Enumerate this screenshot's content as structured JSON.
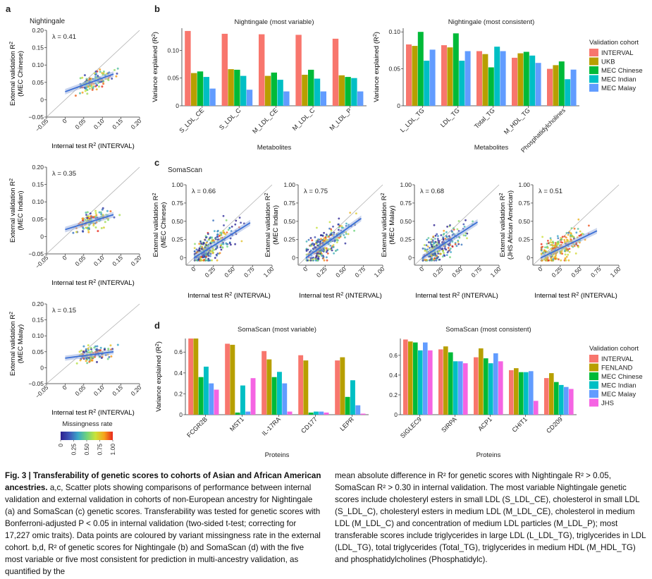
{
  "panel_letters": {
    "a": "a",
    "b": "b",
    "c": "c",
    "d": "d"
  },
  "colors": {
    "INTERVAL": "#f8766d",
    "UKB": "#b79f00",
    "FENLAND": "#b79f00",
    "MEC Chinese": "#00ba38",
    "MEC Indian": "#00bfc4",
    "MEC Malay": "#619cff",
    "JHS": "#f564e3",
    "fit_line": "#3b6fd6",
    "diagonal": "#b0b0b0"
  },
  "missingness": {
    "title": "Missingness rate",
    "ticks": [
      "0",
      "0.25",
      "0.50",
      "0.75",
      "1.00"
    ],
    "gradient": [
      "#2c1f8f",
      "#3d55b8",
      "#39a7c8",
      "#6fd37d",
      "#c9e33a",
      "#f6a51c",
      "#e8261c"
    ]
  },
  "chart_data": [
    {
      "id": "a1",
      "type": "scatter",
      "title": "Nightingale",
      "annotation": "λ = 0.41",
      "xlabel": "Internal test R2 (INTERVAL)",
      "ylabel": "External validation R2 (MEC Chinese)",
      "xlim": [
        -0.05,
        0.2
      ],
      "ylim": [
        -0.05,
        0.2
      ],
      "xticks": [
        "−0.05",
        "0",
        "0.05",
        "0.10",
        "0.15",
        "0.20"
      ],
      "yticks": [
        "−0.05",
        "0",
        "0.05",
        "0.10",
        "0.15",
        "0.20"
      ],
      "fit": {
        "x": [
          0.0,
          0.13
        ],
        "y": [
          0.023,
          0.074
        ]
      },
      "cloud": {
        "xmean": 0.07,
        "xsd": 0.03,
        "slope": 0.41,
        "icept": 0.023,
        "ysd": 0.012
      }
    },
    {
      "id": "a2",
      "type": "scatter",
      "annotation": "λ = 0.35",
      "xlabel": "Internal test R2 (INTERVAL)",
      "ylabel": "External validation R2 (MEC Indian)",
      "xlim": [
        -0.05,
        0.2
      ],
      "ylim": [
        -0.05,
        0.2
      ],
      "xticks": [
        "−0.05",
        "0",
        "0.05",
        "0.10",
        "0.15",
        "0.20"
      ],
      "yticks": [
        "−0.05",
        "0",
        "0.05",
        "0.10",
        "0.15",
        "0.20"
      ],
      "fit": {
        "x": [
          0.0,
          0.13
        ],
        "y": [
          0.02,
          0.063
        ]
      },
      "cloud": {
        "xmean": 0.07,
        "xsd": 0.03,
        "slope": 0.35,
        "icept": 0.02,
        "ysd": 0.012
      }
    },
    {
      "id": "a3",
      "type": "scatter",
      "annotation": "λ = 0.15",
      "xlabel": "Internal test R2 (INTERVAL)",
      "ylabel": "External validation R2 (MEC Malay)",
      "xlim": [
        -0.05,
        0.2
      ],
      "ylim": [
        -0.05,
        0.2
      ],
      "xticks": [
        "−0.05",
        "0",
        "0.05",
        "0.10",
        "0.15",
        "0.20"
      ],
      "yticks": [
        "−0.05",
        "0",
        "0.05",
        "0.10",
        "0.15",
        "0.20"
      ],
      "fit": {
        "x": [
          0.0,
          0.13
        ],
        "y": [
          0.03,
          0.05
        ]
      },
      "cloud": {
        "xmean": 0.07,
        "xsd": 0.03,
        "slope": 0.15,
        "icept": 0.03,
        "ysd": 0.012
      }
    },
    {
      "id": "b1",
      "type": "bar",
      "title": "Nightingale (most variable)",
      "xlabel": "Metabolites",
      "ylabel": "Variance explained (R2)",
      "ylim": [
        0,
        0.14
      ],
      "yticks": [
        "0",
        "0.05",
        "0.10"
      ],
      "categories": [
        "S_LDL_CE",
        "S_LDL_C",
        "M_LDL_CE",
        "M_LDL_C",
        "M_LDL_P"
      ],
      "series": [
        {
          "name": "INTERVAL",
          "values": [
            0.135,
            0.13,
            0.129,
            0.128,
            0.121
          ]
        },
        {
          "name": "UKB",
          "values": [
            0.059,
            0.066,
            0.054,
            0.056,
            0.055
          ]
        },
        {
          "name": "MEC Chinese",
          "values": [
            0.062,
            0.065,
            0.06,
            0.065,
            0.052
          ]
        },
        {
          "name": "MEC Indian",
          "values": [
            0.052,
            0.054,
            0.047,
            0.049,
            0.05
          ]
        },
        {
          "name": "MEC Malay",
          "values": [
            0.031,
            0.029,
            0.026,
            0.026,
            0.026
          ]
        }
      ]
    },
    {
      "id": "b2",
      "type": "bar",
      "title": "Nightingale (most consistent)",
      "xlabel": "Metabolites",
      "ylabel": "Variance explained (R2)",
      "ylim": [
        0,
        0.105
      ],
      "yticks": [
        "0",
        "0.05",
        "0.10"
      ],
      "categories": [
        "L_LDL_TG",
        "LDL_TG",
        "Total_TG",
        "M_HDL_TG",
        "Phosphatidylcholines"
      ],
      "series": [
        {
          "name": "INTERVAL",
          "values": [
            0.083,
            0.082,
            0.074,
            0.065,
            0.05
          ]
        },
        {
          "name": "UKB",
          "values": [
            0.081,
            0.079,
            0.07,
            0.071,
            0.055
          ]
        },
        {
          "name": "MEC Chinese",
          "values": [
            0.1,
            0.098,
            0.052,
            0.073,
            0.06
          ]
        },
        {
          "name": "MEC Indian",
          "values": [
            0.061,
            0.061,
            0.08,
            0.068,
            0.036
          ]
        },
        {
          "name": "MEC Malay",
          "values": [
            0.076,
            0.074,
            0.074,
            0.058,
            0.049
          ]
        }
      ]
    },
    {
      "id": "c1",
      "type": "scatter",
      "title": "SomaScan",
      "annotation": "λ = 0.66",
      "xlabel": "Internal test R2 (INTERVAL)",
      "ylabel": "External validation R2 (MEC Chinese)",
      "xlim": [
        -0.1,
        1.0
      ],
      "ylim": [
        -0.1,
        1.0
      ],
      "xticks": [
        "0",
        "0.25",
        "0.50",
        "0.75",
        "1.00"
      ],
      "yticks": [
        "0",
        "0.25",
        "0.50",
        "0.75",
        "1.00"
      ],
      "fit": {
        "x": [
          0.0,
          0.72
        ],
        "y": [
          0.0,
          0.48
        ]
      },
      "cloud": {
        "xmean": 0.2,
        "xsd": 0.18,
        "slope": 0.66,
        "icept": 0.0,
        "ysd": 0.07
      }
    },
    {
      "id": "c2",
      "type": "scatter",
      "annotation": "λ = 0.75",
      "xlabel": "Internal test R2 (INTERVAL)",
      "ylabel": "External validation R2 (MEC Indian)",
      "xlim": [
        -0.1,
        1.0
      ],
      "ylim": [
        -0.1,
        1.0
      ],
      "xticks": [
        "0",
        "0.25",
        "0.50",
        "0.75",
        "1.00"
      ],
      "yticks": [
        "0",
        "0.25",
        "0.50",
        "0.75",
        "1.00"
      ],
      "fit": {
        "x": [
          0.0,
          0.72
        ],
        "y": [
          0.0,
          0.54
        ]
      },
      "cloud": {
        "xmean": 0.2,
        "xsd": 0.18,
        "slope": 0.75,
        "icept": 0.0,
        "ysd": 0.07
      }
    },
    {
      "id": "c3",
      "type": "scatter",
      "annotation": "λ = 0.68",
      "xlabel": "Internal test R2 (INTERVAL)",
      "ylabel": "External validation R2 (MEC Malay)",
      "xlim": [
        -0.1,
        1.0
      ],
      "ylim": [
        -0.1,
        1.0
      ],
      "xticks": [
        "0",
        "0.25",
        "0.50",
        "0.75",
        "1.00"
      ],
      "yticks": [
        "0",
        "0.25",
        "0.50",
        "0.75",
        "1.00"
      ],
      "fit": {
        "x": [
          0.0,
          0.72
        ],
        "y": [
          0.0,
          0.49
        ]
      },
      "cloud": {
        "xmean": 0.2,
        "xsd": 0.18,
        "slope": 0.68,
        "icept": 0.0,
        "ysd": 0.07
      }
    },
    {
      "id": "c4",
      "type": "scatter",
      "annotation": "λ = 0.51",
      "xlabel": "Internal test R2 (INTERVAL)",
      "ylabel": "External validation R2 (JHS African American)",
      "xlim": [
        -0.1,
        1.0
      ],
      "ylim": [
        -0.1,
        1.0
      ],
      "xticks": [
        "0",
        "0.25",
        "0.50",
        "0.75",
        "1.00"
      ],
      "yticks": [
        "0",
        "0.25",
        "0.50",
        "0.75",
        "1.00"
      ],
      "fit": {
        "x": [
          0.0,
          0.72
        ],
        "y": [
          0.0,
          0.37
        ]
      },
      "cloud": {
        "xmean": 0.2,
        "xsd": 0.18,
        "slope": 0.51,
        "icept": 0.0,
        "ysd": 0.07
      }
    },
    {
      "id": "d1",
      "type": "bar",
      "title": "SomaScan (most variable)",
      "xlabel": "Proteins",
      "ylabel": "Variance explained (R2)",
      "ylim": [
        0,
        0.73
      ],
      "yticks": [
        "0",
        "0.2",
        "0.4",
        "0.6"
      ],
      "categories": [
        "FCGR2B",
        "MST1",
        "IL-17RA",
        "CD177",
        "LEPR"
      ],
      "series": [
        {
          "name": "INTERVAL",
          "values": [
            0.73,
            0.68,
            0.61,
            0.57,
            0.52
          ]
        },
        {
          "name": "FENLAND",
          "values": [
            0.73,
            0.67,
            0.53,
            0.52,
            0.55
          ]
        },
        {
          "name": "MEC Chinese",
          "values": [
            0.36,
            0.02,
            0.36,
            0.02,
            0.17
          ]
        },
        {
          "name": "MEC Indian",
          "values": [
            0.46,
            0.28,
            0.41,
            0.03,
            0.33
          ]
        },
        {
          "name": "MEC Malay",
          "values": [
            0.3,
            0.03,
            0.3,
            0.03,
            0.09
          ]
        },
        {
          "name": "JHS",
          "values": [
            0.24,
            0.35,
            0.03,
            0.02,
            0.01
          ]
        }
      ]
    },
    {
      "id": "d2",
      "type": "bar",
      "title": "SomaScan (most consistent)",
      "xlabel": "Proteins",
      "ylabel": "",
      "ylim": [
        0,
        0.77
      ],
      "yticks": [
        "0",
        "0.2",
        "0.4",
        "0.6"
      ],
      "categories": [
        "SIGLEC9",
        "SIRPA",
        "ACP1",
        "CHIT1",
        "CD209"
      ],
      "series": [
        {
          "name": "INTERVAL",
          "values": [
            0.76,
            0.66,
            0.58,
            0.45,
            0.37
          ]
        },
        {
          "name": "FENLAND",
          "values": [
            0.74,
            0.69,
            0.67,
            0.47,
            0.42
          ]
        },
        {
          "name": "MEC Chinese",
          "values": [
            0.73,
            0.63,
            0.57,
            0.43,
            0.33
          ]
        },
        {
          "name": "MEC Indian",
          "values": [
            0.65,
            0.54,
            0.52,
            0.43,
            0.3
          ]
        },
        {
          "name": "MEC Malay",
          "values": [
            0.73,
            0.54,
            0.62,
            0.44,
            0.28
          ]
        },
        {
          "name": "JHS",
          "values": [
            0.65,
            0.52,
            0.54,
            0.14,
            0.26
          ]
        }
      ]
    }
  ],
  "legend_b": {
    "title": "Validation cohort",
    "items": [
      "INTERVAL",
      "UKB",
      "MEC Chinese",
      "MEC Indian",
      "MEC Malay"
    ]
  },
  "legend_d": {
    "title": "Validation cohort",
    "items": [
      "INTERVAL",
      "FENLAND",
      "MEC Chinese",
      "MEC Indian",
      "MEC Malay",
      "JHS"
    ]
  },
  "caption": {
    "fig_label": "Fig. 3 | Transferability of genetic scores to cohorts of Asian and African American ancestries.",
    "left_text": " a,c, Scatter plots showing comparisons of performance between internal validation and external validation in cohorts of non-European ancestry for Nightingale (a) and SomaScan (c) genetic scores. Transferability was tested for genetic scores with Bonferroni-adjusted P < 0.05 in internal validation (two-sided t-test; correcting for 17,227 omic traits). Data points are coloured by variant missingness rate in the external cohort. b,d, R² of genetic scores for Nightingale (b) and SomaScan (d) with the five most variable or five most consistent for prediction in multi-ancestry validation, as quantified by the",
    "right_text": "mean absolute difference in R² for genetic scores with Nightingale R² > 0.05, SomaScan R² > 0.30 in internal validation. The most variable Nightingale genetic scores include cholesteryl esters in small LDL (S_LDL_CE), cholesterol in small LDL (S_LDL_C), cholesteryl esters in medium LDL (M_LDL_CE), cholesterol in medium LDL (M_LDL_C) and concentration of medium LDL particles (M_LDL_P); most transferable scores include triglycerides in large LDL (L_LDL_TG), triglycerides in LDL (LDL_TG), total triglycerides (Total_TG), triglycerides in medium HDL (M_HDL_TG) and phosphatidylcholines (Phosphatidylc)."
  }
}
